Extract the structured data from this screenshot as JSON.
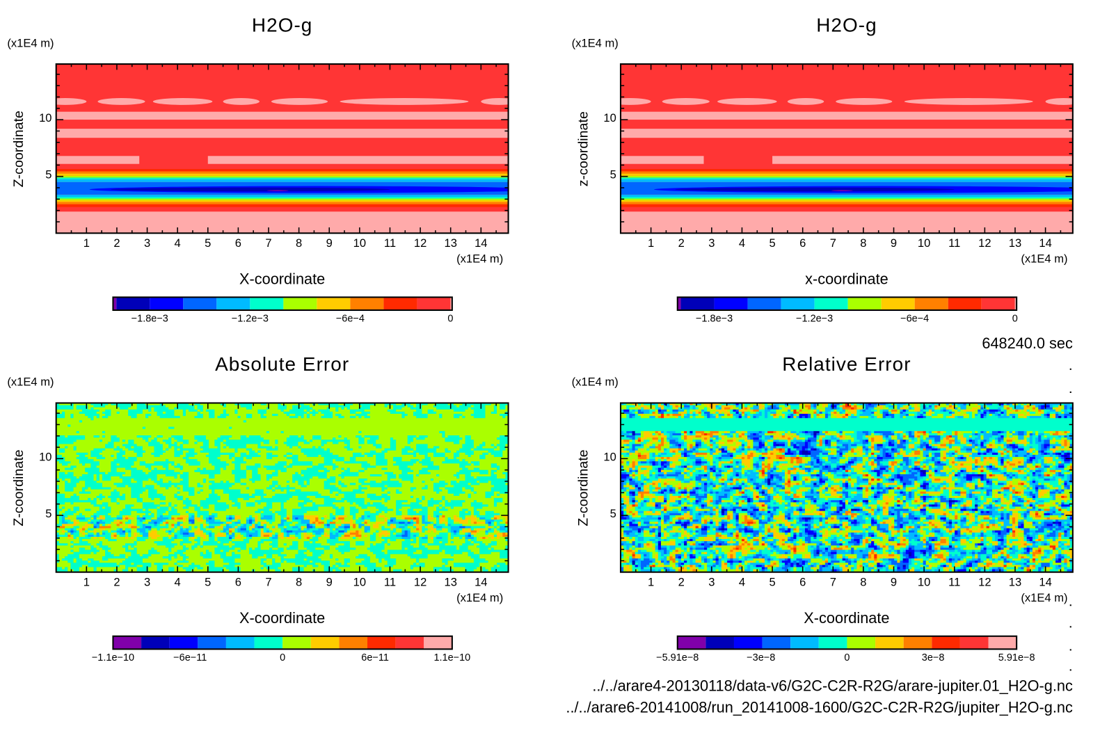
{
  "time_label": "648240.0 sec",
  "file_paths": [
    "../../arare4-20130118/data-v6/G2C-C2R-R2G/arare-jupiter.01_H2O-g.nc",
    "../../arare6-20141008/run_20141008-1600/G2C-C2R-R2G/jupiter_H2O-g.nc"
  ],
  "colors": [
    "#8000aa",
    "#0000b8",
    "#0000ff",
    "#0066ff",
    "#00bbff",
    "#00ffcc",
    "#aaff00",
    "#ffcc00",
    "#ff8000",
    "#ff2a00",
    "#ff3535",
    "#ffaaaa"
  ],
  "chart_data": [
    {
      "type": "heatmap",
      "title": "H2O-g",
      "xlabel": "X-coordinate",
      "ylabel": "Z-coordinate",
      "x_unit": "(x1E4 m)",
      "y_unit": "(x1E4 m)",
      "xlim": [
        0,
        14.9
      ],
      "ylim": [
        0,
        14.9
      ],
      "xticks": [
        "1",
        "2",
        "3",
        "4",
        "5",
        "6",
        "7",
        "8",
        "9",
        "10",
        "11",
        "12",
        "13",
        "14"
      ],
      "yticks": [
        "5",
        "10"
      ],
      "colorbar": {
        "range": [
          -0.00202,
          1e-05
        ],
        "bounds": [
          -0.00202,
          -0.002,
          -0.0018,
          -0.0016,
          -0.0014,
          -0.0012,
          -0.001,
          -0.0008,
          -0.0006,
          -0.0004,
          -0.0002,
          0,
          1e-05
        ],
        "ticks": [
          {
            "value": -0.0018,
            "label": "−1.8e−3"
          },
          {
            "value": -0.0012,
            "label": "−1.2e−3"
          },
          {
            "value": -0.0006,
            "label": "−6e−4"
          },
          {
            "value": 0,
            "label": "0"
          }
        ]
      },
      "field": {
        "background_level": 10,
        "features": [
          {
            "shape": "rect",
            "x": [
              0,
              14.9
            ],
            "z": [
              0,
              1.9
            ],
            "level": 11
          },
          {
            "shape": "rect",
            "x": [
              0,
              14.9
            ],
            "z": [
              2.3,
              2.55
            ],
            "level": 9
          },
          {
            "shape": "rect",
            "x": [
              0,
              14.9
            ],
            "z": [
              2.55,
              2.75
            ],
            "level": 8
          },
          {
            "shape": "rect",
            "x": [
              0,
              14.9
            ],
            "z": [
              2.75,
              2.9
            ],
            "level": 7
          },
          {
            "shape": "rect",
            "x": [
              0,
              14.9
            ],
            "z": [
              2.9,
              3.05
            ],
            "level": 6
          },
          {
            "shape": "rect",
            "x": [
              0,
              14.9
            ],
            "z": [
              3.05,
              3.2
            ],
            "level": 5
          },
          {
            "shape": "rect",
            "x": [
              0,
              14.9
            ],
            "z": [
              3.2,
              3.4
            ],
            "level": 4
          },
          {
            "shape": "rect",
            "x": [
              0,
              14.9
            ],
            "z": [
              3.4,
              4.5
            ],
            "level": 3
          },
          {
            "shape": "rect",
            "x": [
              0,
              14.9
            ],
            "z": [
              4.5,
              4.75
            ],
            "level": 4
          },
          {
            "shape": "rect",
            "x": [
              0,
              14.9
            ],
            "z": [
              4.75,
              4.9
            ],
            "level": 5
          },
          {
            "shape": "rect",
            "x": [
              0,
              14.9
            ],
            "z": [
              4.9,
              5.05
            ],
            "level": 6
          },
          {
            "shape": "rect",
            "x": [
              0,
              14.9
            ],
            "z": [
              5.05,
              5.25
            ],
            "level": 7
          },
          {
            "shape": "rect",
            "x": [
              0,
              14.9
            ],
            "z": [
              5.25,
              5.45
            ],
            "level": 8
          },
          {
            "shape": "rect",
            "x": [
              0,
              14.9
            ],
            "z": [
              5.45,
              5.65
            ],
            "level": 9
          },
          {
            "shape": "ellipse",
            "cx": 8.6,
            "cz": 3.85,
            "rx": 7.5,
            "rz": 0.3,
            "level": 2
          },
          {
            "shape": "ellipse",
            "cx": 6.4,
            "cz": 3.85,
            "rx": 4.6,
            "rz": 0.17,
            "level": 1
          },
          {
            "shape": "ellipse",
            "cx": 7.3,
            "cz": 3.75,
            "rx": 0.35,
            "rz": 0.05,
            "level": 0
          },
          {
            "shape": "rect",
            "x": [
              0,
              2.74
            ],
            "z": [
              6.1,
              6.8
            ],
            "level": 11
          },
          {
            "shape": "rect",
            "x": [
              5.0,
              14.9
            ],
            "z": [
              6.1,
              6.8
            ],
            "level": 11
          },
          {
            "shape": "rect",
            "x": [
              0,
              14.9
            ],
            "z": [
              8.4,
              9.2
            ],
            "level": 11
          },
          {
            "shape": "rect",
            "x": [
              0,
              14.9
            ],
            "z": [
              10.0,
              10.7
            ],
            "level": 11
          },
          {
            "shape": "ellipse",
            "cx": 0.3,
            "cz": 11.6,
            "rx": 0.7,
            "rz": 0.3,
            "level": 11
          },
          {
            "shape": "ellipse",
            "cx": 2.15,
            "cz": 11.6,
            "rx": 0.78,
            "rz": 0.3,
            "level": 11
          },
          {
            "shape": "ellipse",
            "cx": 4.17,
            "cz": 11.6,
            "rx": 0.98,
            "rz": 0.3,
            "level": 11
          },
          {
            "shape": "ellipse",
            "cx": 6.1,
            "cz": 11.6,
            "rx": 0.6,
            "rz": 0.3,
            "level": 11
          },
          {
            "shape": "ellipse",
            "cx": 8.02,
            "cz": 11.6,
            "rx": 0.93,
            "rz": 0.3,
            "level": 11
          },
          {
            "shape": "ellipse",
            "cx": 11.47,
            "cz": 11.6,
            "rx": 2.12,
            "rz": 0.3,
            "level": 11
          },
          {
            "shape": "ellipse",
            "cx": 14.6,
            "cz": 11.6,
            "rx": 0.6,
            "rz": 0.3,
            "level": 11
          }
        ]
      }
    },
    {
      "type": "heatmap",
      "title": "H2O-g",
      "xlabel": "x-coordinate",
      "ylabel": "z-coordinate",
      "x_unit": "(x1E4 m)",
      "y_unit": "(x1E4 m)",
      "xlim": [
        0,
        14.9
      ],
      "ylim": [
        0,
        14.9
      ],
      "xticks": [
        "1",
        "2",
        "3",
        "4",
        "5",
        "6",
        "7",
        "8",
        "9",
        "10",
        "11",
        "12",
        "13",
        "14"
      ],
      "yticks": [
        "5",
        "10"
      ],
      "colorbar": {
        "range": [
          -0.00202,
          1e-05
        ],
        "bounds": [
          -0.00202,
          -0.002,
          -0.0018,
          -0.0016,
          -0.0014,
          -0.0012,
          -0.001,
          -0.0008,
          -0.0006,
          -0.0004,
          -0.0002,
          0,
          1e-05
        ],
        "ticks": [
          {
            "value": -0.0018,
            "label": "−1.8e−3"
          },
          {
            "value": -0.0012,
            "label": "−1.2e−3"
          },
          {
            "value": -0.0006,
            "label": "−6e−4"
          },
          {
            "value": 0,
            "label": "0"
          }
        ]
      },
      "field": {
        "same_as": 0
      }
    },
    {
      "type": "heatmap",
      "title": "Absolute Error",
      "xlabel": "X-coordinate",
      "ylabel": "Z-coordinate",
      "x_unit": "(x1E4 m)",
      "y_unit": "(x1E4 m)",
      "xlim": [
        0,
        14.9
      ],
      "ylim": [
        0,
        14.9
      ],
      "xticks": [
        "1",
        "2",
        "3",
        "4",
        "5",
        "6",
        "7",
        "8",
        "9",
        "10",
        "11",
        "12",
        "13",
        "14"
      ],
      "yticks": [
        "5",
        "10"
      ],
      "colorbar": {
        "range": [
          -1.1e-10,
          1.1e-10
        ],
        "bins": 12,
        "ticks": [
          {
            "value": -1.1e-10,
            "label": "−1.1e−10"
          },
          {
            "value": -6e-11,
            "label": "−6e−11"
          },
          {
            "value": 0,
            "label": "0"
          },
          {
            "value": 6e-11,
            "label": "6e−11"
          },
          {
            "value": 1.1e-10,
            "label": "1.1e−10"
          }
        ]
      },
      "field": {
        "pattern": "noise",
        "mode": "absolute"
      }
    },
    {
      "type": "heatmap",
      "title": "Relative Error",
      "xlabel": "X-coordinate",
      "ylabel": "Z-coordinate",
      "x_unit": "(x1E4 m)",
      "y_unit": "(x1E4 m)",
      "xlim": [
        0,
        14.9
      ],
      "ylim": [
        0,
        14.9
      ],
      "xticks": [
        "1",
        "2",
        "3",
        "4",
        "5",
        "6",
        "7",
        "8",
        "9",
        "10",
        "11",
        "12",
        "13",
        "14"
      ],
      "yticks": [
        "5",
        "10"
      ],
      "colorbar": {
        "range": [
          -5.91e-08,
          5.91e-08
        ],
        "bins": 12,
        "ticks": [
          {
            "value": -5.91e-08,
            "label": "−5.91e−8"
          },
          {
            "value": -3e-08,
            "label": "−3e−8"
          },
          {
            "value": 0,
            "label": "0"
          },
          {
            "value": 3e-08,
            "label": "3e−8"
          },
          {
            "value": 5.91e-08,
            "label": "5.91e−8"
          }
        ]
      },
      "field": {
        "pattern": "noise",
        "mode": "relative"
      }
    }
  ]
}
